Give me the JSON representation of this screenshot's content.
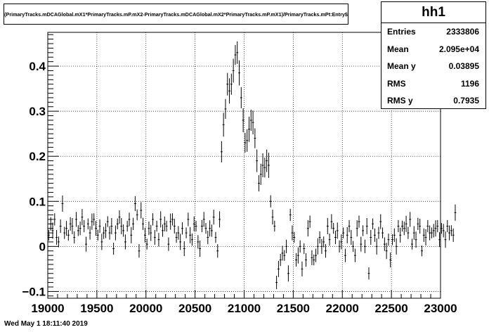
{
  "chart_data": {
    "type": "scatter",
    "title": "(PrimaryTracks.mDCAGlobal.mX1*PrimaryTracks.mP.mX2-PrimaryTracks.mDCAGlobal.mX2*PrimaryTracks.mP.mX1)/PrimaryTracks.mPt:Entry$",
    "xlabel": "",
    "ylabel": "",
    "xlim": [
      19000,
      23000
    ],
    "ylim": [
      -0.115,
      0.475
    ],
    "x_ticks": [
      19000,
      19500,
      20000,
      20500,
      21000,
      21500,
      22000,
      22500,
      23000
    ],
    "x_tick_labels": [
      "19000",
      "19500",
      "20000",
      "20500",
      "21000",
      "21500",
      "22000",
      "22500",
      "23000"
    ],
    "y_ticks": [
      -0.1,
      0,
      0.1,
      0.2,
      0.3,
      0.4
    ],
    "y_tick_labels": [
      "−0.1",
      "0",
      "0.1",
      "0.2",
      "0.3",
      "0.4"
    ],
    "grid": true,
    "bin_width": 20,
    "series": [
      {
        "x_start": 19010,
        "x_step": 20,
        "values": [
          0.025,
          0.05,
          0.035,
          0.06,
          0.02,
          0.01,
          0.045,
          0.095,
          0.03,
          0.04,
          0.025,
          0.05,
          0.045,
          0.02,
          0.06,
          0.035,
          0.04,
          0.065,
          0.045,
          0.005,
          0.05,
          0.03,
          0.055,
          0.06,
          0.04,
          0.025,
          0.045,
          0.01,
          0.03,
          0.035,
          0.055,
          0.03,
          0.045,
          -0.005,
          0.03,
          0.05,
          0.065,
          0.045,
          0.035,
          0.01,
          0.045,
          0.06,
          0.025,
          0.05,
          0.095,
          0.07,
          -0.01,
          0.08,
          0.05,
          0.025,
          0.005,
          0.04,
          0.03,
          0.06,
          0.02,
          0.045,
          0.015,
          0.06,
          0.035,
          0.05,
          0.045,
          0.005,
          0.055,
          0.06,
          0.045,
          0.02,
          0.03,
          0.01,
          0.04,
          -0.005,
          0.03,
          0.06,
          0.025,
          0.015,
          0.05,
          0.045,
          0.01,
          -0.005,
          0.045,
          0.06,
          0.04,
          0.02,
          0.04,
          0.035,
          0.065,
          0.02,
          -0.01,
          0.06,
          0.21,
          0.27,
          0.305,
          0.36,
          0.345,
          0.36,
          0.39,
          0.425,
          0.43,
          0.385,
          0.33,
          0.28,
          0.23,
          0.235,
          0.26,
          0.28,
          0.275,
          0.24,
          0.19,
          0.14,
          0.16,
          0.18,
          0.175,
          0.19,
          0.18,
          0.1,
          0.065,
          0.045,
          -0.08,
          -0.05,
          -0.03,
          -0.015,
          -0.02,
          0.0,
          -0.06,
          0.07,
          0.03,
          0.02,
          -0.03,
          -0.02,
          0.0,
          -0.05,
          -0.005,
          -0.03,
          0.04,
          0.055,
          -0.025,
          -0.03,
          -0.02,
          0.0,
          0.02,
          0.0,
          0.01,
          -0.01,
          0.045,
          0.015,
          0.055,
          0.04,
          0.02,
          0.035,
          0.0,
          0.01,
          0.03,
          -0.02,
          0.025,
          0.045,
          0.02,
          0.0,
          -0.02,
          0.04,
          0.055,
          0.005,
          0.035,
          0.0,
          0.045,
          -0.06,
          0.02,
          0.05,
          0.025,
          0.0,
          0.03,
          0.055,
          0.03,
          0.005,
          -0.01,
          0.015,
          -0.03,
          0.015,
          0.025,
          0.0,
          0.045,
          0.025,
          0.045,
          0.04,
          0.05,
          0.03,
          0.06,
          0.005,
          0.03,
          0.015,
          0.05,
          0.045,
          -0.01,
          0.025,
          0.02,
          0.045,
          0.03,
          0.03,
          0.035,
          0.04,
          0.045,
          0.015,
          0.04,
          0.035,
          0.015,
          0.045,
          0.03,
          0.035,
          0.025,
          0.075
        ]
      }
    ]
  },
  "stats": {
    "name": "hh1",
    "rows": [
      {
        "label": "Entries",
        "value": "2333806"
      },
      {
        "label": "Mean",
        "value": "2.095e+04"
      },
      {
        "label": "Mean y",
        "value": "0.03895"
      },
      {
        "label": "RMS",
        "value": "1196"
      },
      {
        "label": "RMS y",
        "value": "0.7935"
      }
    ]
  },
  "footer": {
    "timestamp": "Wed May  1 18:11:40 2019"
  }
}
